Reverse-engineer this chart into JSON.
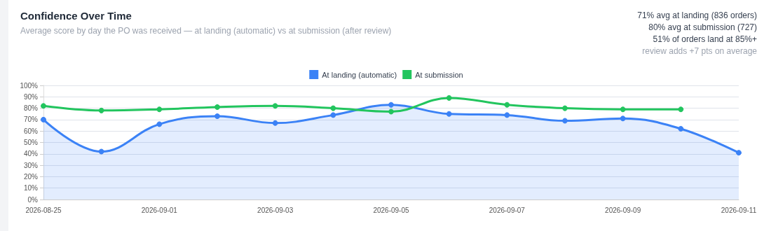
{
  "chart_data": {
    "type": "line",
    "title": "Confidence Over Time",
    "subtitle": "Average score by day the PO was received — at landing (automatic) vs at submission (after review)",
    "annotations": [
      "71% avg at landing (836 orders)",
      "80% avg at submission (727)",
      "51% of orders land at 85%+",
      "review adds +7 pts on average"
    ],
    "categories": [
      "2026-08-25",
      null,
      "2026-09-01",
      null,
      "2026-09-03",
      null,
      "2026-09-05",
      null,
      "2026-09-07",
      null,
      "2026-09-09",
      null,
      "2026-09-11"
    ],
    "series": [
      {
        "name": "At landing (automatic)",
        "type": "area",
        "color": "#3b82f6",
        "values": [
          70,
          42,
          66,
          73,
          67,
          74,
          83,
          75,
          74,
          69,
          71,
          62,
          41
        ]
      },
      {
        "name": "At submission",
        "type": "line",
        "color": "#22c55e",
        "values": [
          82,
          78,
          79,
          81,
          82,
          80,
          77,
          89,
          83,
          80,
          79,
          79,
          null
        ]
      }
    ],
    "ylim": [
      0,
      100
    ],
    "yticks": [
      {
        "value": 0,
        "label": "0%"
      },
      {
        "value": 10,
        "label": "10%"
      },
      {
        "value": 20,
        "label": "20%"
      },
      {
        "value": 30,
        "label": "30%"
      },
      {
        "value": 40,
        "label": "40%"
      },
      {
        "value": 50,
        "label": "50%"
      },
      {
        "value": 60,
        "label": "60%"
      },
      {
        "value": 70,
        "label": "70%"
      },
      {
        "value": 80,
        "label": "80%"
      },
      {
        "value": 90,
        "label": "90%"
      },
      {
        "value": 100,
        "label": "100%"
      }
    ],
    "grid": "y",
    "legend": "top",
    "marker": "circle",
    "line_style": "solid"
  }
}
